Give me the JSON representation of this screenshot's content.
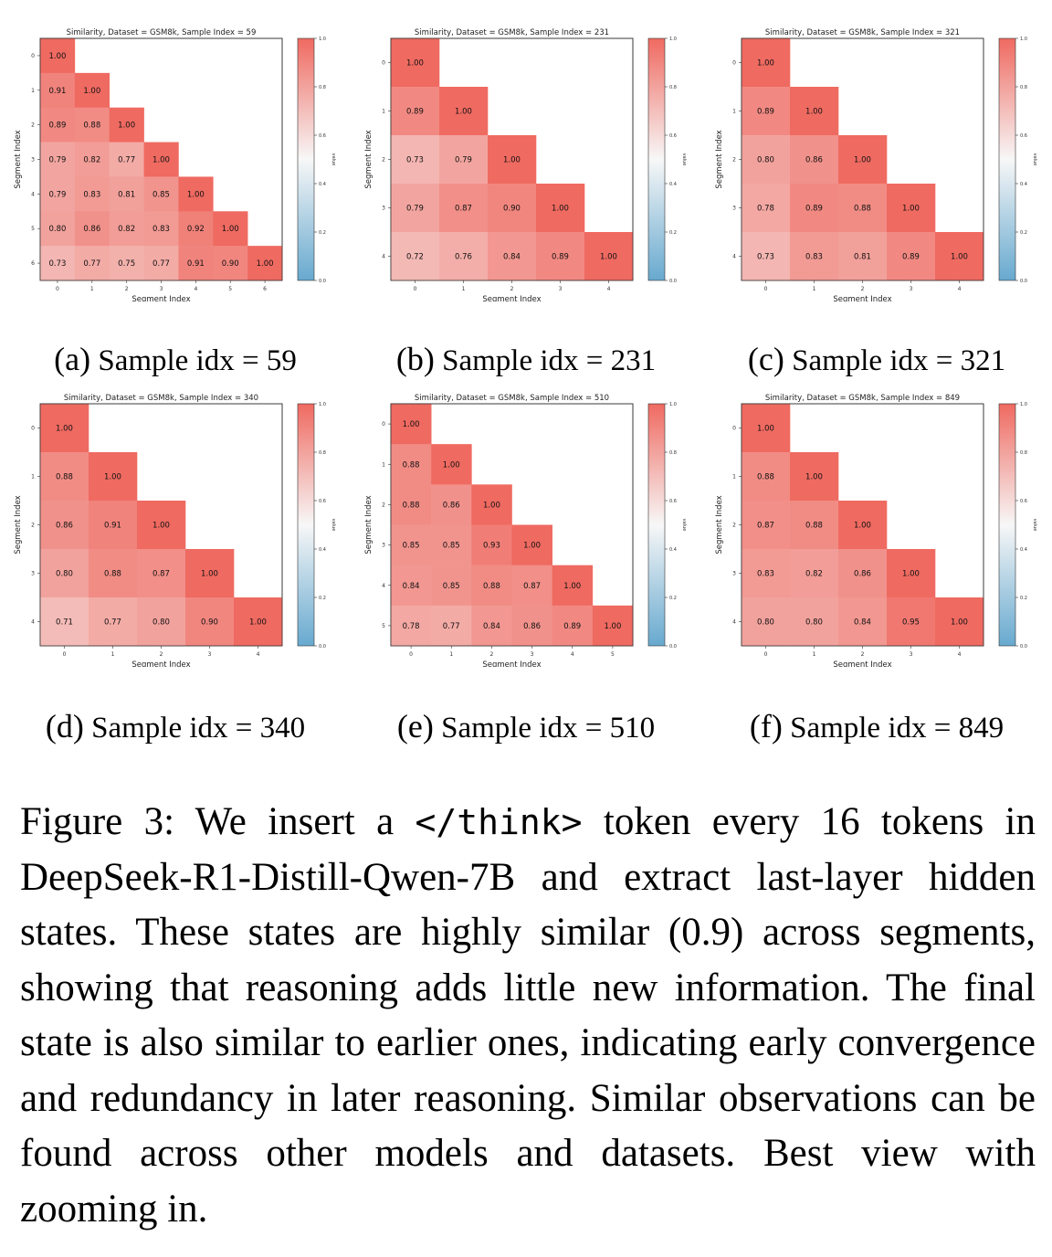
{
  "figure": {
    "panels": [
      {
        "subcaption_label": "(a)",
        "subcaption_text": "Sample idx = 59",
        "chart_data": {
          "type": "heatmap",
          "title": "Similarity, Dataset = GSM8k, Sample Index = 59",
          "xlabel": "Segment Index",
          "ylabel": "Segment Index",
          "colorbar_label": "value",
          "colorbar_ticks": [
            "0.0",
            "0.2",
            "0.4",
            "0.6",
            "0.8",
            "1.0"
          ],
          "colormap": {
            "low": "#67a9cf",
            "mid": "#f7f7f7",
            "high": "#ef6a61"
          },
          "vmin": 0,
          "vmax": 1,
          "x": [
            "0",
            "1",
            "2",
            "3",
            "4",
            "5",
            "6"
          ],
          "y": [
            "0",
            "1",
            "2",
            "3",
            "4",
            "5",
            "6"
          ],
          "values": [
            [
              1.0
            ],
            [
              0.91,
              1.0
            ],
            [
              0.89,
              0.88,
              1.0
            ],
            [
              0.79,
              0.82,
              0.77,
              1.0
            ],
            [
              0.79,
              0.83,
              0.81,
              0.85,
              1.0
            ],
            [
              0.8,
              0.86,
              0.82,
              0.83,
              0.92,
              1.0
            ],
            [
              0.73,
              0.77,
              0.75,
              0.77,
              0.91,
              0.9,
              1.0
            ]
          ]
        }
      },
      {
        "subcaption_label": "(b)",
        "subcaption_text": "Sample idx = 231",
        "chart_data": {
          "type": "heatmap",
          "title": "Similarity, Dataset = GSM8k, Sample Index = 231",
          "xlabel": "Segment Index",
          "ylabel": "Segment Index",
          "colorbar_label": "value",
          "colorbar_ticks": [
            "0.0",
            "0.2",
            "0.4",
            "0.6",
            "0.8",
            "1.0"
          ],
          "colormap": {
            "low": "#67a9cf",
            "mid": "#f7f7f7",
            "high": "#ef6a61"
          },
          "vmin": 0,
          "vmax": 1,
          "x": [
            "0",
            "1",
            "2",
            "3",
            "4"
          ],
          "y": [
            "0",
            "1",
            "2",
            "3",
            "4"
          ],
          "values": [
            [
              1.0
            ],
            [
              0.89,
              1.0
            ],
            [
              0.73,
              0.79,
              1.0
            ],
            [
              0.79,
              0.87,
              0.9,
              1.0
            ],
            [
              0.72,
              0.76,
              0.84,
              0.89,
              1.0
            ]
          ]
        }
      },
      {
        "subcaption_label": "(c)",
        "subcaption_text": "Sample idx = 321",
        "chart_data": {
          "type": "heatmap",
          "title": "Similarity, Dataset = GSM8k, Sample Index = 321",
          "xlabel": "Segment Index",
          "ylabel": "Segment Index",
          "colorbar_label": "value",
          "colorbar_ticks": [
            "0.0",
            "0.2",
            "0.4",
            "0.6",
            "0.8",
            "1.0"
          ],
          "colormap": {
            "low": "#67a9cf",
            "mid": "#f7f7f7",
            "high": "#ef6a61"
          },
          "vmin": 0,
          "vmax": 1,
          "x": [
            "0",
            "1",
            "2",
            "3",
            "4"
          ],
          "y": [
            "0",
            "1",
            "2",
            "3",
            "4"
          ],
          "values": [
            [
              1.0
            ],
            [
              0.89,
              1.0
            ],
            [
              0.8,
              0.86,
              1.0
            ],
            [
              0.78,
              0.89,
              0.88,
              1.0
            ],
            [
              0.73,
              0.83,
              0.81,
              0.89,
              1.0
            ]
          ]
        }
      },
      {
        "subcaption_label": "(d)",
        "subcaption_text": "Sample idx = 340",
        "chart_data": {
          "type": "heatmap",
          "title": "Similarity, Dataset = GSM8k, Sample Index = 340",
          "xlabel": "Segment Index",
          "ylabel": "Segment Index",
          "colorbar_label": "value",
          "colorbar_ticks": [
            "0.0",
            "0.2",
            "0.4",
            "0.6",
            "0.8",
            "1.0"
          ],
          "colormap": {
            "low": "#67a9cf",
            "mid": "#f7f7f7",
            "high": "#ef6a61"
          },
          "vmin": 0,
          "vmax": 1,
          "x": [
            "0",
            "1",
            "2",
            "3",
            "4"
          ],
          "y": [
            "0",
            "1",
            "2",
            "3",
            "4"
          ],
          "values": [
            [
              1.0
            ],
            [
              0.88,
              1.0
            ],
            [
              0.86,
              0.91,
              1.0
            ],
            [
              0.8,
              0.88,
              0.87,
              1.0
            ],
            [
              0.71,
              0.77,
              0.8,
              0.9,
              1.0
            ]
          ]
        }
      },
      {
        "subcaption_label": "(e)",
        "subcaption_text": "Sample idx = 510",
        "chart_data": {
          "type": "heatmap",
          "title": "Similarity, Dataset = GSM8k, Sample Index = 510",
          "xlabel": "Segment Index",
          "ylabel": "Segment Index",
          "colorbar_label": "value",
          "colorbar_ticks": [
            "0.0",
            "0.2",
            "0.4",
            "0.6",
            "0.8",
            "1.0"
          ],
          "colormap": {
            "low": "#67a9cf",
            "mid": "#f7f7f7",
            "high": "#ef6a61"
          },
          "vmin": 0,
          "vmax": 1,
          "x": [
            "0",
            "1",
            "2",
            "3",
            "4",
            "5"
          ],
          "y": [
            "0",
            "1",
            "2",
            "3",
            "4",
            "5"
          ],
          "values": [
            [
              1.0
            ],
            [
              0.88,
              1.0
            ],
            [
              0.88,
              0.86,
              1.0
            ],
            [
              0.85,
              0.85,
              0.93,
              1.0
            ],
            [
              0.84,
              0.85,
              0.88,
              0.87,
              1.0
            ],
            [
              0.78,
              0.77,
              0.84,
              0.86,
              0.89,
              1.0
            ]
          ]
        }
      },
      {
        "subcaption_label": "(f)",
        "subcaption_text": "Sample idx = 849",
        "chart_data": {
          "type": "heatmap",
          "title": "Similarity, Dataset = GSM8k, Sample Index = 849",
          "xlabel": "Segment Index",
          "ylabel": "Segment Index",
          "colorbar_label": "value",
          "colorbar_ticks": [
            "0.0",
            "0.2",
            "0.4",
            "0.6",
            "0.8",
            "1.0"
          ],
          "colormap": {
            "low": "#67a9cf",
            "mid": "#f7f7f7",
            "high": "#ef6a61"
          },
          "vmin": 0,
          "vmax": 1,
          "x": [
            "0",
            "1",
            "2",
            "3",
            "4"
          ],
          "y": [
            "0",
            "1",
            "2",
            "3",
            "4"
          ],
          "values": [
            [
              1.0
            ],
            [
              0.88,
              1.0
            ],
            [
              0.87,
              0.88,
              1.0
            ],
            [
              0.83,
              0.82,
              0.86,
              1.0
            ],
            [
              0.8,
              0.8,
              0.84,
              0.95,
              1.0
            ]
          ]
        }
      }
    ]
  },
  "caption": {
    "label": "Figure 3:",
    "text_before_token": "We insert a",
    "token": "</think>",
    "text_after_token": "token every 16 tokens in DeepSeek-R1-Distill-Qwen-7B and extract last-layer hidden states.  These states are highly similar (0.9) across segments, showing that reasoning adds little new information. The final state is also similar to earlier ones, indicating early convergence and redundancy in later reasoning.  Similar observations can be found across other models and datasets. Best view with zooming in."
  }
}
